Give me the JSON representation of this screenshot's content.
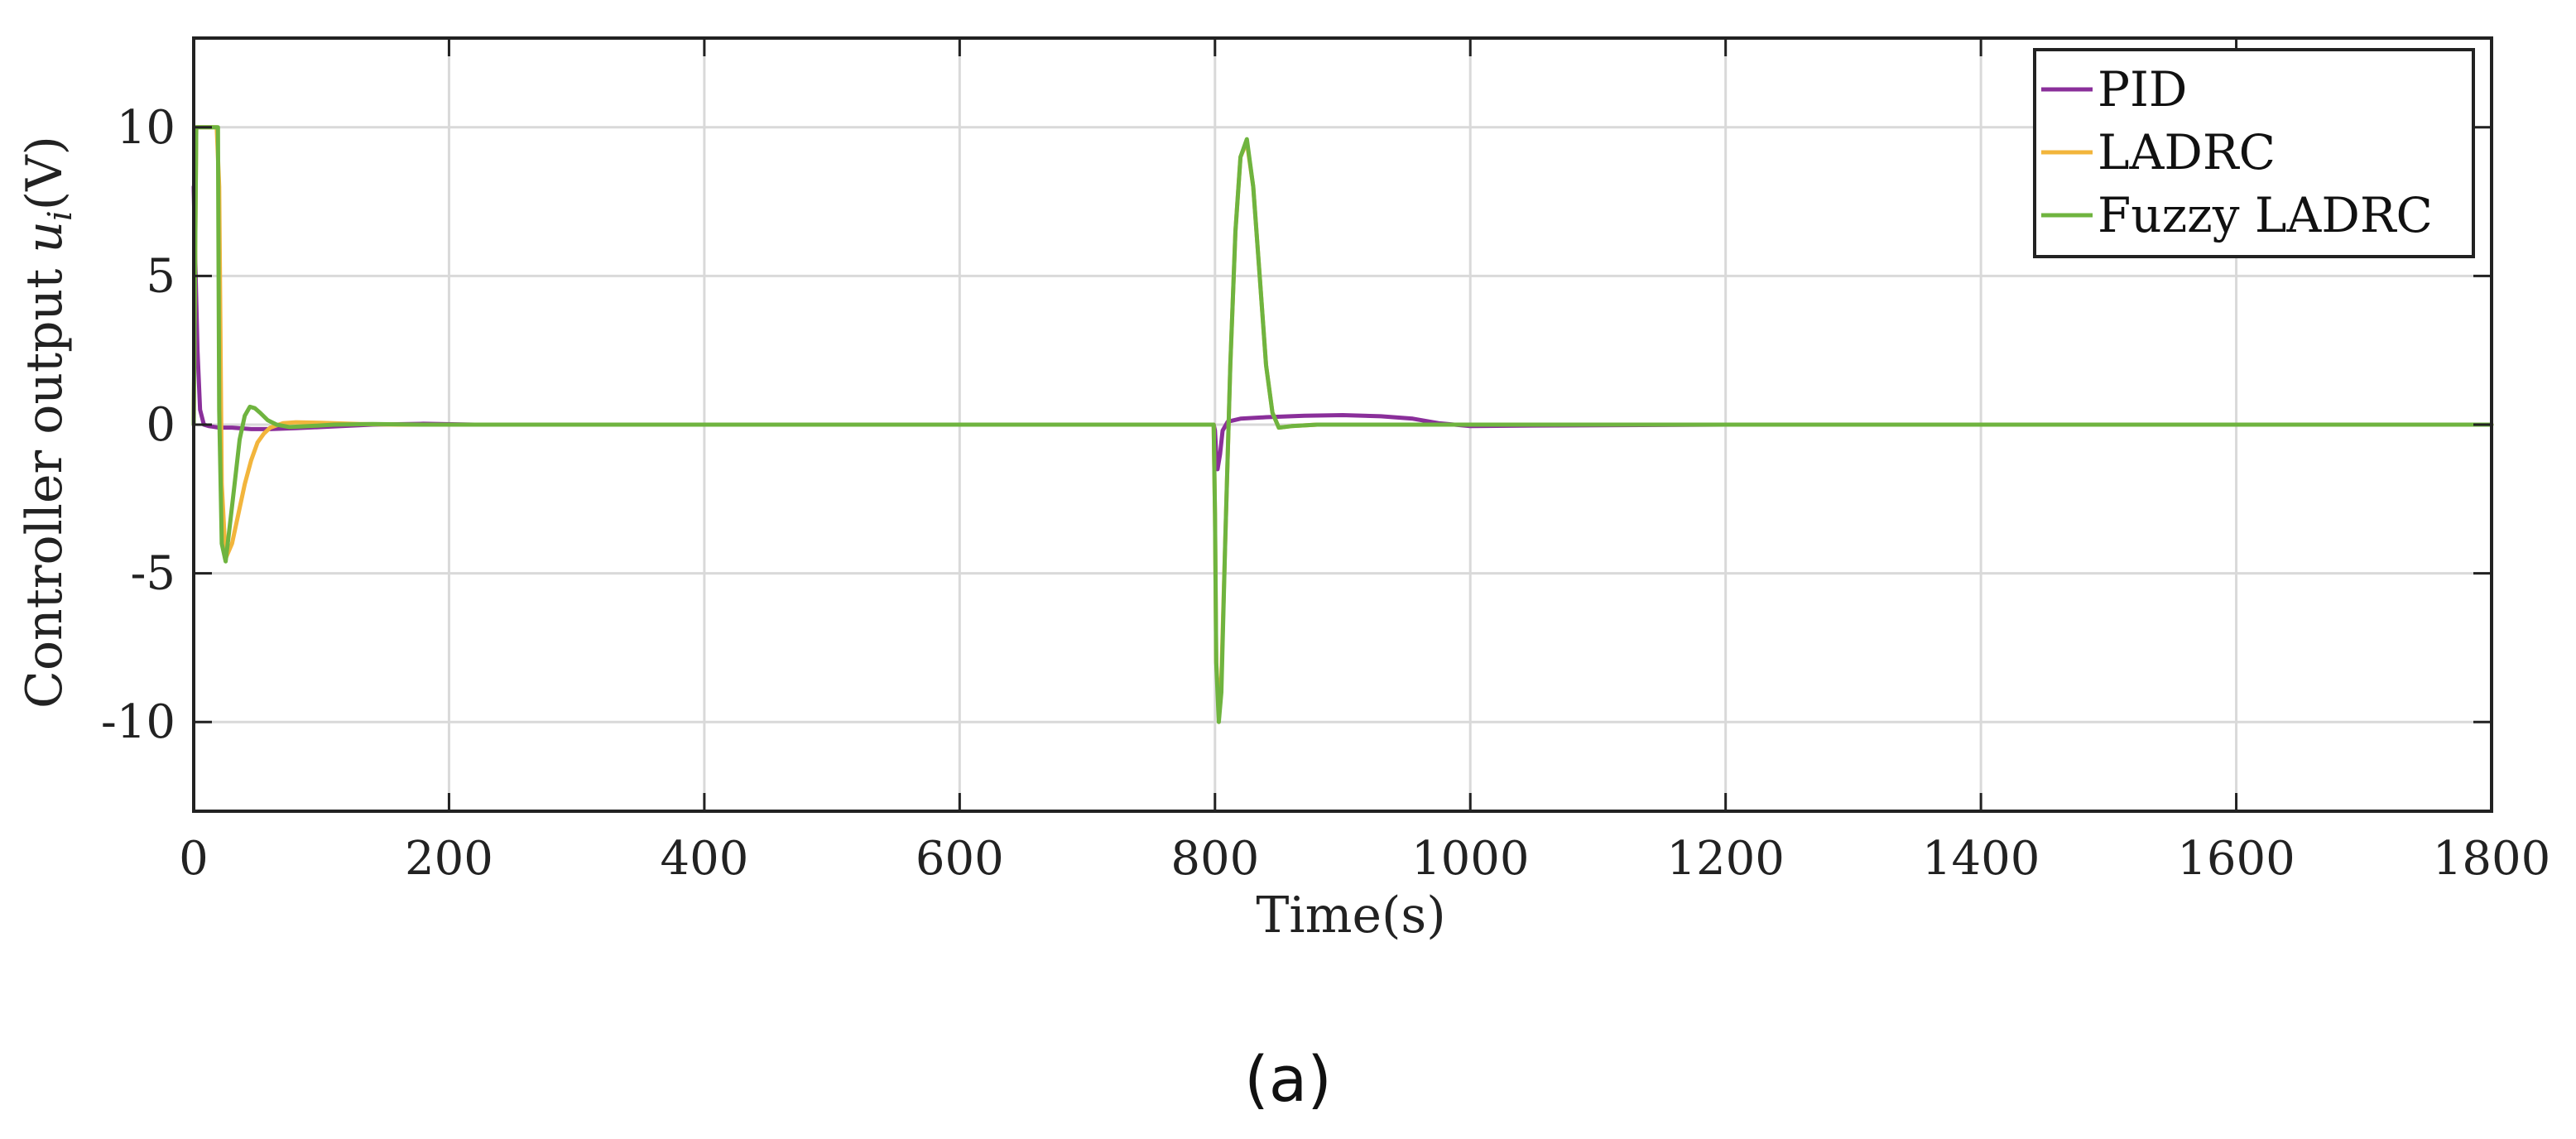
{
  "chart_data": {
    "type": "line",
    "title": "",
    "xlabel": "Time(s)",
    "ylabel": "Controller output u_i(V)",
    "ylabel_text": "Controller output ",
    "ylabel_symbol": "u",
    "ylabel_subscript": "i",
    "ylabel_unit": "(V)",
    "xlim": [
      0,
      1800
    ],
    "ylim": [
      -13,
      13
    ],
    "x_ticks": [
      0,
      200,
      400,
      600,
      800,
      1000,
      1200,
      1400,
      1600,
      1800
    ],
    "y_ticks": [
      10,
      5,
      0,
      -5,
      -10
    ],
    "x_tick_labels": [
      "0",
      "200",
      "400",
      "600",
      "800",
      "1000",
      "1200",
      "1400",
      "1600",
      "1800"
    ],
    "y_tick_labels": [
      "10",
      "5",
      "0",
      "-5",
      "-10"
    ],
    "grid": true,
    "legend_position": "top-right",
    "series": [
      {
        "name": "PID",
        "color": "#8a2f9a",
        "x": [
          0,
          1,
          3,
          5,
          8,
          12,
          20,
          30,
          45,
          60,
          80,
          100,
          140,
          180,
          220,
          300,
          400,
          500,
          600,
          700,
          790,
          799,
          800,
          801,
          802,
          804,
          806,
          810,
          820,
          840,
          870,
          900,
          930,
          955,
          975,
          1000,
          1050,
          1200,
          1400,
          1600,
          1800
        ],
        "y": [
          8.0,
          6.0,
          2.5,
          0.5,
          0.0,
          -0.05,
          -0.1,
          -0.1,
          -0.15,
          -0.15,
          -0.12,
          -0.08,
          0.0,
          0.03,
          0.0,
          0.0,
          0.0,
          0.0,
          0.0,
          0.0,
          0.0,
          0.0,
          -0.2,
          -1.0,
          -1.5,
          -1.0,
          -0.2,
          0.1,
          0.2,
          0.25,
          0.3,
          0.32,
          0.28,
          0.2,
          0.05,
          -0.05,
          -0.03,
          0.0,
          0.0,
          0.0,
          0.0
        ]
      },
      {
        "name": "LADRC",
        "color": "#f2b53c",
        "x": [
          0,
          2,
          5,
          8,
          10,
          13,
          16,
          18,
          20,
          22,
          25,
          30,
          35,
          40,
          45,
          50,
          55,
          60,
          70,
          80,
          100,
          130,
          160,
          200,
          300,
          400,
          500,
          600,
          700,
          799,
          800,
          801,
          803,
          805,
          808,
          812,
          816,
          820,
          825,
          830,
          835,
          840,
          845,
          850,
          860,
          880,
          900,
          1000,
          1200,
          1400,
          1600,
          1800
        ],
        "y": [
          0.0,
          10.0,
          10.0,
          10.0,
          10.0,
          10.0,
          10.0,
          10.0,
          8.0,
          -2.0,
          -4.5,
          -4.0,
          -3.0,
          -2.0,
          -1.2,
          -0.6,
          -0.3,
          -0.1,
          0.05,
          0.08,
          0.06,
          0.02,
          0.0,
          0.0,
          0.0,
          0.0,
          0.0,
          0.0,
          0.0,
          0.0,
          -3.0,
          -8.0,
          -9.5,
          -8.5,
          -4.0,
          2.0,
          6.5,
          9.0,
          9.5,
          8.0,
          5.0,
          2.0,
          0.4,
          -0.1,
          -0.05,
          0.0,
          0.0,
          0.0,
          0.0,
          0.0,
          0.0,
          0.0
        ]
      },
      {
        "name": "Fuzzy LADRC",
        "color": "#6fb43f",
        "x": [
          0,
          2,
          5,
          8,
          10,
          13,
          16,
          18,
          19,
          20,
          22,
          25,
          28,
          32,
          36,
          40,
          44,
          48,
          52,
          58,
          65,
          75,
          90,
          110,
          140,
          180,
          250,
          300,
          400,
          500,
          600,
          700,
          799,
          800,
          801,
          803,
          805,
          808,
          812,
          816,
          820,
          825,
          830,
          835,
          840,
          845,
          850,
          860,
          880,
          900,
          1000,
          1200,
          1400,
          1600,
          1800
        ],
        "y": [
          0.0,
          10.0,
          10.0,
          10.0,
          10.0,
          10.0,
          10.0,
          10.0,
          10.0,
          0.5,
          -4.0,
          -4.6,
          -3.5,
          -2.0,
          -0.5,
          0.3,
          0.6,
          0.55,
          0.4,
          0.15,
          0.0,
          -0.08,
          -0.05,
          0.0,
          0.02,
          0.0,
          0.0,
          0.0,
          0.0,
          0.0,
          0.0,
          0.0,
          0.0,
          -3.0,
          -8.0,
          -10.0,
          -9.0,
          -4.0,
          2.0,
          6.5,
          9.0,
          9.6,
          8.0,
          5.0,
          2.0,
          0.4,
          -0.1,
          -0.05,
          0.0,
          0.0,
          0.0,
          0.0,
          0.0,
          0.0,
          0.0
        ]
      }
    ]
  },
  "caption": "(a)"
}
